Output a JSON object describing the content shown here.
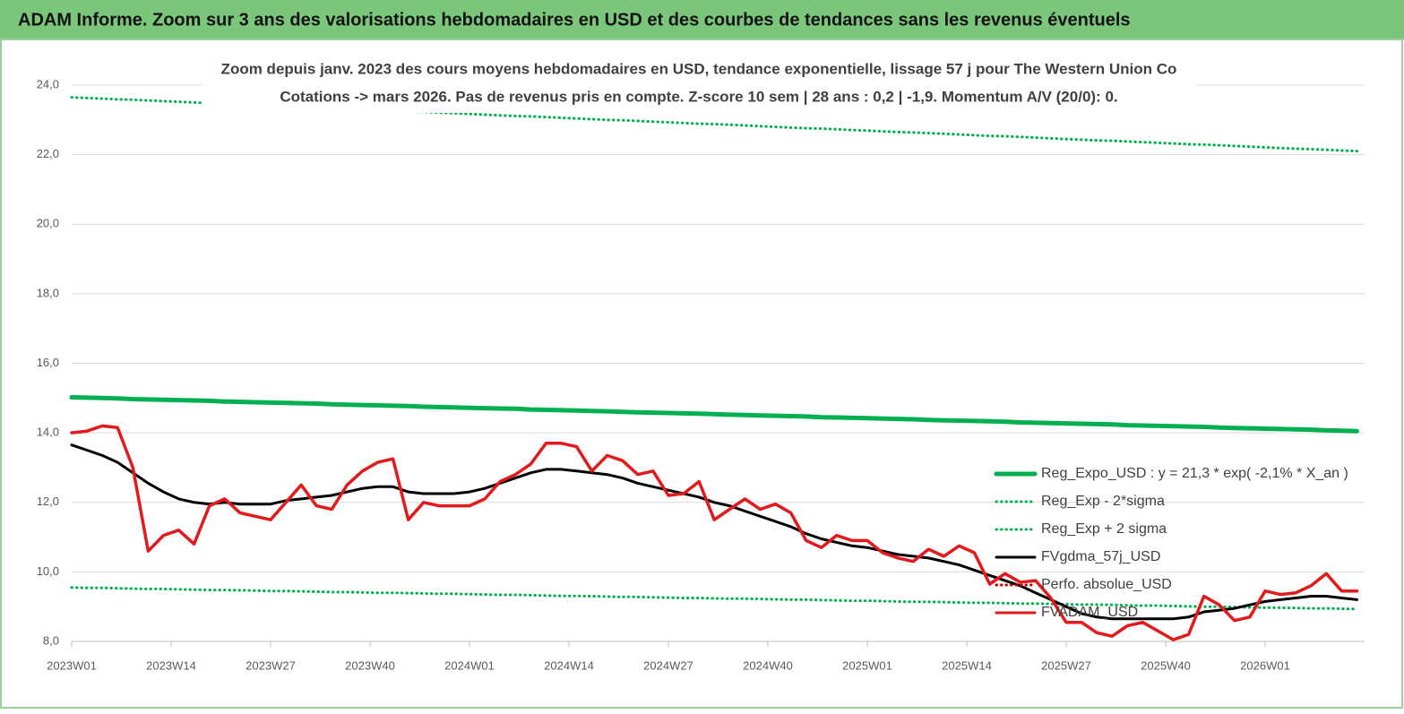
{
  "chart_data": {
    "type": "line",
    "title": "ADAM Informe. Zoom sur 3 ans des valorisations hebdomadaires en USD et des courbes de tendances sans les revenus éventuels",
    "subtitle": [
      "Zoom depuis janv. 2023 des cours moyens hebdomadaires en USD, tendance exponentielle, lissage 57 j pour The Western Union Co",
      "Cotations -> mars 2026. Pas de revenus pris en  compte. Z-score 10 sem  | 28 ans : 0,2  | -1,9. Momentum A/V (20/0): 0."
    ],
    "x": [
      0,
      2,
      4,
      6,
      8,
      10,
      12,
      14,
      16,
      18,
      20,
      22,
      24,
      26,
      28,
      30,
      32,
      34,
      36,
      38,
      40,
      42,
      44,
      46,
      48,
      50,
      52,
      54,
      56,
      58,
      60,
      62,
      64,
      66,
      68,
      70,
      72,
      74,
      76,
      78,
      80,
      82,
      84,
      86,
      88,
      90,
      92,
      94,
      96,
      98,
      100,
      102,
      104,
      106,
      108,
      110,
      112,
      114,
      116,
      118,
      120,
      122,
      124,
      126,
      128,
      130,
      132,
      134,
      136,
      138,
      140,
      142,
      144,
      146,
      148,
      150,
      152,
      154,
      156,
      158,
      160,
      162,
      164,
      166,
      168
    ],
    "xlim": [
      0,
      169
    ],
    "xticks": [
      {
        "value": 0,
        "label": "2023W01"
      },
      {
        "value": 13,
        "label": "2023W14"
      },
      {
        "value": 26,
        "label": "2023W27"
      },
      {
        "value": 39,
        "label": "2023W40"
      },
      {
        "value": 52,
        "label": "2024W01"
      },
      {
        "value": 65,
        "label": "2024W14"
      },
      {
        "value": 78,
        "label": "2024W27"
      },
      {
        "value": 91,
        "label": "2024W40"
      },
      {
        "value": 104,
        "label": "2025W01"
      },
      {
        "value": 117,
        "label": "2025W14"
      },
      {
        "value": 130,
        "label": "2025W27"
      },
      {
        "value": 143,
        "label": "2025W40"
      },
      {
        "value": 156,
        "label": "2026W01"
      }
    ],
    "ylim": [
      8,
      24
    ],
    "yticks": [
      {
        "value": 8,
        "label": "8,0"
      },
      {
        "value": 10,
        "label": "10,0"
      },
      {
        "value": 12,
        "label": "12,0"
      },
      {
        "value": 14,
        "label": "14,0"
      },
      {
        "value": 16,
        "label": "16,0"
      },
      {
        "value": 18,
        "label": "18,0"
      },
      {
        "value": 20,
        "label": "20,0"
      },
      {
        "value": 22,
        "label": "22,0"
      },
      {
        "value": 24,
        "label": "24,0"
      }
    ],
    "grid": true,
    "series": [
      {
        "name": "Reg_Expo_USD : y = 21,3 * exp( -2,1% *  X_an )",
        "color": "#00b050",
        "style": "solid",
        "values": [
          15.02,
          15.01,
          15.0,
          14.99,
          14.97,
          14.96,
          14.95,
          14.94,
          14.93,
          14.92,
          14.9,
          14.89,
          14.88,
          14.87,
          14.86,
          14.85,
          14.84,
          14.82,
          14.81,
          14.8,
          14.79,
          14.78,
          14.77,
          14.75,
          14.74,
          14.73,
          14.72,
          14.71,
          14.7,
          14.69,
          14.67,
          14.66,
          14.65,
          14.64,
          14.63,
          14.62,
          14.6,
          14.59,
          14.58,
          14.57,
          14.56,
          14.55,
          14.54,
          14.52,
          14.51,
          14.5,
          14.49,
          14.48,
          14.47,
          14.45,
          14.44,
          14.43,
          14.42,
          14.41,
          14.4,
          14.39,
          14.37,
          14.36,
          14.35,
          14.34,
          14.33,
          14.32,
          14.3,
          14.29,
          14.28,
          14.27,
          14.26,
          14.25,
          14.24,
          14.22,
          14.21,
          14.2,
          14.19,
          14.18,
          14.17,
          14.15,
          14.14,
          14.13,
          14.12,
          14.11,
          14.1,
          14.09,
          14.07,
          14.06,
          14.05
        ]
      },
      {
        "name": "Reg_Exp - 2*sigma",
        "color": "#00b050",
        "style": "dotted",
        "values": [
          9.55,
          9.54,
          9.54,
          9.53,
          9.52,
          9.51,
          9.51,
          9.5,
          9.49,
          9.48,
          9.48,
          9.47,
          9.46,
          9.45,
          9.45,
          9.44,
          9.43,
          9.42,
          9.42,
          9.41,
          9.4,
          9.4,
          9.39,
          9.38,
          9.37,
          9.37,
          9.36,
          9.35,
          9.34,
          9.34,
          9.33,
          9.32,
          9.31,
          9.31,
          9.3,
          9.29,
          9.28,
          9.28,
          9.27,
          9.26,
          9.25,
          9.25,
          9.24,
          9.23,
          9.23,
          9.22,
          9.21,
          9.2,
          9.2,
          9.19,
          9.18,
          9.17,
          9.17,
          9.16,
          9.15,
          9.14,
          9.14,
          9.13,
          9.12,
          9.11,
          9.11,
          9.1,
          9.09,
          9.09,
          9.08,
          9.07,
          9.06,
          9.06,
          9.05,
          9.04,
          9.03,
          9.03,
          9.02,
          9.01,
          9.0,
          9.0,
          8.99,
          8.98,
          8.97,
          8.97,
          8.96,
          8.95,
          8.95,
          8.94,
          8.93
        ]
      },
      {
        "name": "Reg_Exp + 2 sigma",
        "color": "#00b050",
        "style": "dotted",
        "values": [
          23.65,
          23.63,
          23.61,
          23.59,
          23.58,
          23.56,
          23.54,
          23.52,
          23.5,
          23.48,
          23.47,
          23.45,
          23.43,
          23.41,
          23.39,
          23.37,
          23.35,
          23.34,
          23.32,
          23.3,
          23.28,
          23.26,
          23.24,
          23.23,
          23.21,
          23.19,
          23.17,
          23.15,
          23.13,
          23.11,
          23.1,
          23.08,
          23.06,
          23.04,
          23.02,
          23.0,
          22.99,
          22.97,
          22.95,
          22.93,
          22.91,
          22.89,
          22.88,
          22.86,
          22.84,
          22.82,
          22.8,
          22.78,
          22.76,
          22.75,
          22.73,
          22.71,
          22.69,
          22.67,
          22.65,
          22.64,
          22.62,
          22.6,
          22.58,
          22.56,
          22.54,
          22.53,
          22.51,
          22.49,
          22.47,
          22.45,
          22.43,
          22.41,
          22.4,
          22.38,
          22.36,
          22.34,
          22.32,
          22.3,
          22.29,
          22.27,
          22.25,
          22.23,
          22.21,
          22.19,
          22.17,
          22.16,
          22.14,
          22.12,
          22.1
        ]
      },
      {
        "name": "FVgdma_57j_USD",
        "color": "#000000",
        "style": "solid",
        "values": [
          13.65,
          13.5,
          13.35,
          13.15,
          12.85,
          12.55,
          12.3,
          12.1,
          12.0,
          11.95,
          12.0,
          11.95,
          11.95,
          11.95,
          12.05,
          12.1,
          12.15,
          12.2,
          12.3,
          12.4,
          12.45,
          12.45,
          12.3,
          12.25,
          12.25,
          12.25,
          12.3,
          12.4,
          12.55,
          12.7,
          12.85,
          12.95,
          12.95,
          12.9,
          12.85,
          12.8,
          12.7,
          12.55,
          12.45,
          12.35,
          12.25,
          12.15,
          12.0,
          11.9,
          11.75,
          11.6,
          11.45,
          11.3,
          11.1,
          10.95,
          10.85,
          10.75,
          10.7,
          10.6,
          10.5,
          10.45,
          10.4,
          10.3,
          10.2,
          10.05,
          9.9,
          9.75,
          9.6,
          9.4,
          9.2,
          9.0,
          8.8,
          8.7,
          8.65,
          8.65,
          8.65,
          8.65,
          8.65,
          8.7,
          8.85,
          8.9,
          8.95,
          9.05,
          9.15,
          9.2,
          9.25,
          9.3,
          9.3,
          9.25,
          9.2
        ]
      },
      {
        "name": "Perfo. absolue_USD",
        "color": "#c00000",
        "style": "dotted",
        "values": [
          null,
          null,
          null,
          null,
          null,
          null,
          null,
          null,
          null,
          null,
          null,
          null,
          null,
          null,
          null,
          null,
          null,
          null,
          null,
          null,
          null,
          null,
          null,
          null,
          null,
          null,
          null,
          null,
          null,
          null,
          null,
          null,
          null,
          null,
          null,
          null,
          null,
          null,
          null,
          null,
          null,
          null,
          null,
          null,
          null,
          null,
          null,
          null,
          null,
          null,
          null,
          null,
          null,
          null,
          null,
          null,
          null,
          null,
          null,
          null,
          null,
          null,
          null,
          null,
          null,
          null,
          null,
          null,
          null,
          null,
          null,
          null,
          null,
          null,
          null,
          null,
          null,
          null,
          null,
          null,
          null,
          null,
          null,
          null,
          null
        ]
      },
      {
        "name": "FVADAM_USD",
        "color": "#e31a1c",
        "style": "solid",
        "values": [
          14.0,
          14.05,
          14.2,
          14.15,
          13.0,
          10.6,
          11.05,
          11.2,
          10.8,
          11.9,
          12.1,
          11.7,
          11.6,
          11.5,
          12.0,
          12.5,
          11.9,
          11.8,
          12.5,
          12.9,
          13.15,
          13.25,
          11.5,
          12.0,
          11.9,
          11.9,
          11.9,
          12.1,
          12.6,
          12.8,
          13.1,
          13.7,
          13.7,
          13.6,
          12.9,
          13.35,
          13.2,
          12.8,
          12.9,
          12.2,
          12.25,
          12.6,
          11.5,
          11.8,
          12.1,
          11.8,
          11.95,
          11.7,
          10.9,
          10.7,
          11.05,
          10.9,
          10.9,
          10.55,
          10.4,
          10.3,
          10.65,
          10.45,
          10.75,
          10.55,
          9.65,
          9.95,
          9.7,
          9.75,
          9.25,
          8.55,
          8.55,
          8.25,
          8.15,
          8.45,
          8.55,
          8.3,
          8.05,
          8.2,
          9.3,
          9.05,
          8.6,
          8.7,
          9.45,
          9.35,
          9.4,
          9.6,
          9.95,
          9.45,
          9.45
        ]
      }
    ]
  }
}
